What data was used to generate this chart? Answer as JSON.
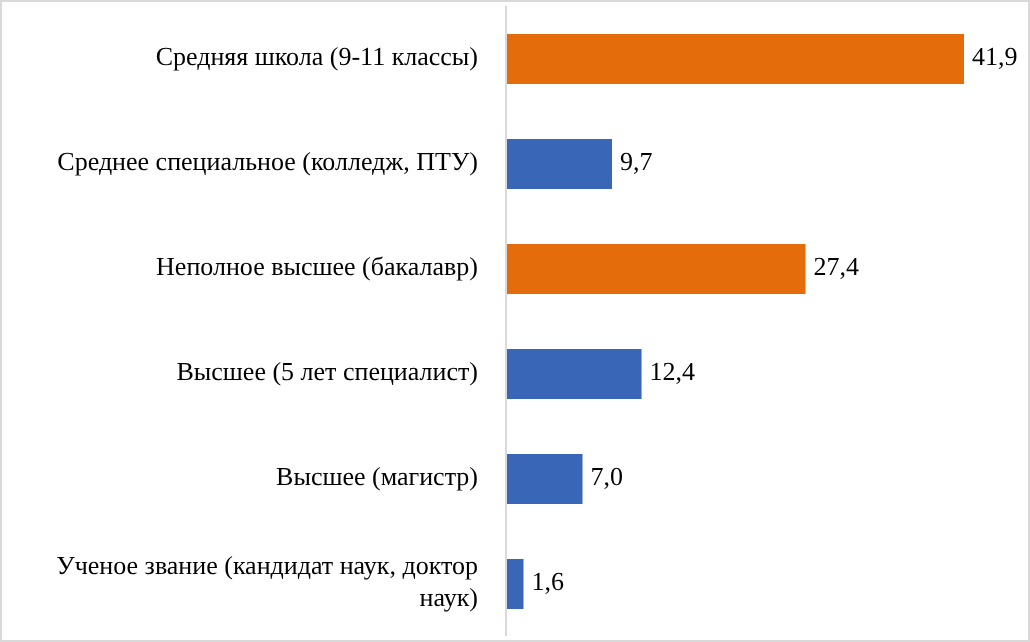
{
  "chart_data": {
    "type": "bar",
    "orientation": "horizontal",
    "categories": [
      "Средняя школа (9-11 классы)",
      "Среднее специальное (колледж, ПТУ)",
      "Неполное высшее (бакалавр)",
      "Высшее (5 лет специалист)",
      "Высшее (магистр)",
      "Ученое звание (кандидат наук, доктор наук)"
    ],
    "values": [
      41.9,
      9.7,
      27.4,
      12.4,
      7.0,
      1.6
    ],
    "colors": [
      "#e46c0a",
      "#3a66b8",
      "#e46c0a",
      "#3a66b8",
      "#3a66b8",
      "#3a66b8"
    ],
    "value_labels": [
      "41,9",
      "9,7",
      "27,4",
      "12,4",
      "7,0",
      "1,6"
    ],
    "tick_labels": "y"
  }
}
